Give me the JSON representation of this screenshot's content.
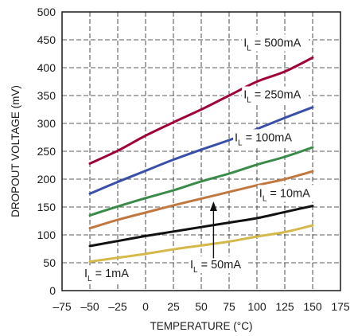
{
  "chart_data": {
    "type": "line",
    "xlabel": "TEMPERATURE (°C)",
    "ylabel": "DROPOUT VOLTAGE (mV)",
    "xlim": [
      -75,
      175
    ],
    "ylim": [
      0,
      500
    ],
    "xticks": [
      -75,
      -50,
      -25,
      0,
      25,
      50,
      75,
      100,
      125,
      150,
      175
    ],
    "xtick_labels": [
      "–75",
      "–50",
      "–25",
      "0",
      "25",
      "50",
      "75",
      "100",
      "125",
      "150",
      "175"
    ],
    "yticks": [
      0,
      50,
      100,
      150,
      200,
      250,
      300,
      350,
      400,
      450,
      500
    ],
    "ytick_labels": [
      "0",
      "50",
      "100",
      "150",
      "200",
      "250",
      "300",
      "350",
      "400",
      "450",
      "500"
    ],
    "grid": true,
    "x": [
      -50,
      -25,
      0,
      25,
      50,
      75,
      100,
      125,
      150
    ],
    "series": [
      {
        "name": "I_L = 500mA",
        "label_main": "I",
        "label_sub": "L",
        "label_rest": " = 500mA",
        "color": "#a0003a",
        "values": [
          228,
          251,
          278,
          302,
          325,
          350,
          375,
          393,
          418
        ]
      },
      {
        "name": "I_L = 250mA",
        "label_main": "I",
        "label_sub": "L",
        "label_rest": " = 250mA",
        "color": "#3a4fa8",
        "values": [
          174,
          195,
          215,
          235,
          253,
          270,
          290,
          310,
          329
        ]
      },
      {
        "name": "I_L = 100mA",
        "label_main": "I",
        "label_sub": "L",
        "label_rest": " = 100mA",
        "color": "#3a8a4a",
        "values": [
          135,
          151,
          166,
          180,
          196,
          210,
          226,
          240,
          257
        ]
      },
      {
        "name": "I_L = 10mA",
        "label_main": "I",
        "label_sub": "L",
        "label_rest": " = 10mA",
        "color": "#c07840",
        "values": [
          112,
          127,
          140,
          153,
          165,
          177,
          189,
          200,
          214
        ]
      },
      {
        "name": "I_L = 50mA",
        "label_main": "I",
        "label_sub": "L",
        "label_rest": " = 50mA",
        "color": "#111111",
        "values": [
          80,
          89,
          98,
          106,
          114,
          122,
          130,
          141,
          152
        ]
      },
      {
        "name": "I_L = 1mA",
        "label_main": "I",
        "label_sub": "L",
        "label_rest": " = 1mA",
        "color": "#d4b84a",
        "values": [
          52,
          59,
          66,
          74,
          81,
          88,
          97,
          105,
          117
        ]
      }
    ]
  }
}
